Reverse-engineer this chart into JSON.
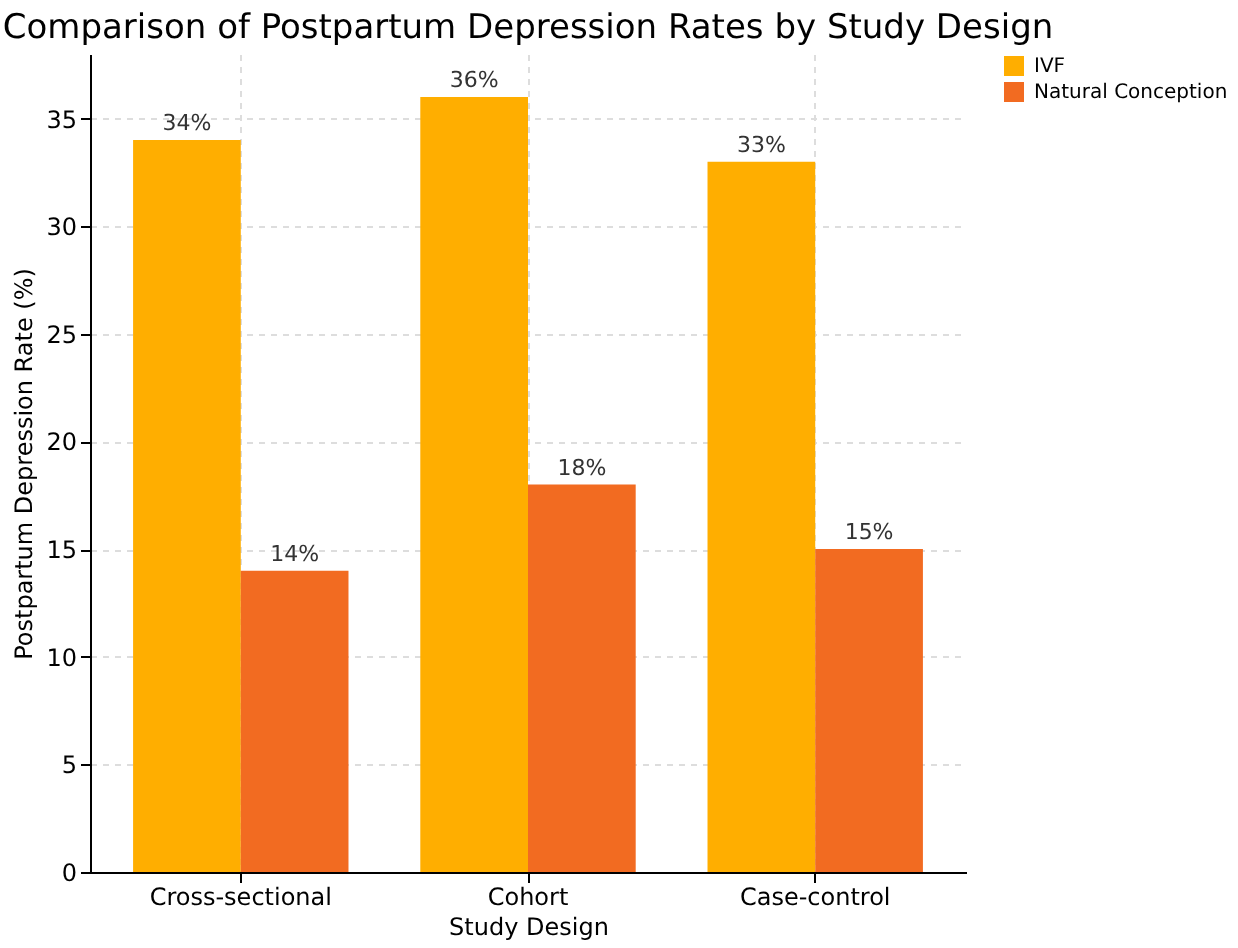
{
  "chart_data": {
    "type": "bar",
    "title": "Comparison of Postpartum Depression Rates by Study Design",
    "xlabel": "Study Design",
    "ylabel": "Postpartum Depression Rate (%)",
    "categories": [
      "Cross-sectional",
      "Cohort",
      "Case-control"
    ],
    "series": [
      {
        "name": "IVF",
        "color": "#ffae00",
        "values": [
          34,
          36,
          33
        ],
        "value_labels": [
          "34%",
          "36%",
          "33%"
        ]
      },
      {
        "name": "Natural Conception",
        "color": "#f26b21",
        "values": [
          14,
          18,
          15
        ],
        "value_labels": [
          "14%",
          "18%",
          "15%"
        ]
      }
    ],
    "ylim": [
      0,
      38
    ],
    "yticks": [
      0,
      5,
      10,
      15,
      20,
      25,
      30,
      35
    ],
    "grid": true,
    "legend": "top right"
  }
}
